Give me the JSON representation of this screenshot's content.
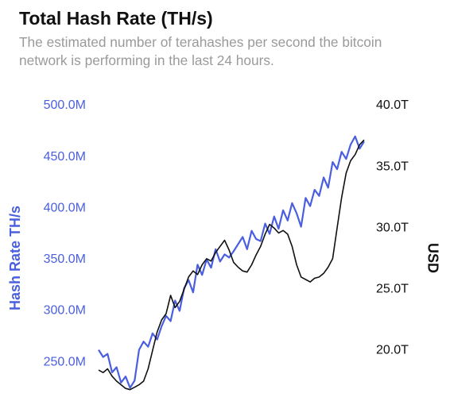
{
  "chart_data": {
    "type": "line",
    "title": "Total Hash Rate (TH/s)",
    "subtitle": "The estimated number of terahashes per second the bitcoin network is performing in the last 24 hours.",
    "ylabel": "Hash Rate TH/s",
    "y2label": "USD",
    "ylim": [
      216000000.0,
      500000000.0
    ],
    "yticks": [
      {
        "value": 250000000.0,
        "label": "250.0M"
      },
      {
        "value": 300000000.0,
        "label": "300.0M"
      },
      {
        "value": 350000000.0,
        "label": "350.0M"
      },
      {
        "value": 400000000.0,
        "label": "400.0M"
      },
      {
        "value": 450000000.0,
        "label": "450.0M"
      },
      {
        "value": 500000000.0,
        "label": "500.0M"
      }
    ],
    "y2lim": [
      16200000000000.0,
      40000000000000.0
    ],
    "y2ticks": [
      {
        "value": 20000000000000.0,
        "label": "20.0T"
      },
      {
        "value": 25000000000000.0,
        "label": "25.0T"
      },
      {
        "value": 30000000000000.0,
        "label": "30.0T"
      },
      {
        "value": 35000000000000.0,
        "label": "35.0T"
      },
      {
        "value": 40000000000000.0,
        "label": "40.0T"
      }
    ],
    "ycolor": "#4a5fe0",
    "y2color": "#111111",
    "series": [
      {
        "color": "#4a5fe0",
        "values": [
          262000000.0,
          255000000.0,
          258000000.0,
          240000000.0,
          245000000.0,
          230000000.0,
          236000000.0,
          225000000.0,
          232000000.0,
          262000000.0,
          270000000.0,
          265000000.0,
          278000000.0,
          272000000.0,
          285000000.0,
          295000000.0,
          290000000.0,
          310000000.0,
          300000000.0,
          322000000.0,
          330000000.0,
          318000000.0,
          345000000.0,
          335000000.0,
          350000000.0,
          342000000.0,
          360000000.0,
          348000000.0,
          355000000.0,
          352000000.0,
          358000000.0,
          365000000.0,
          372000000.0,
          360000000.0,
          378000000.0,
          370000000.0,
          368000000.0,
          385000000.0,
          375000000.0,
          392000000.0,
          380000000.0,
          398000000.0,
          388000000.0,
          405000000.0,
          395000000.0,
          382000000.0,
          410000000.0,
          402000000.0,
          418000000.0,
          412000000.0,
          430000000.0,
          420000000.0,
          445000000.0,
          438000000.0,
          455000000.0,
          448000000.0,
          462000000.0,
          470000000.0,
          458000000.0,
          465000000.0
        ]
      },
      {
        "color": "#111111",
        "axis": "y2",
        "values": [
          18400000000000.0,
          18200000000000.0,
          18500000000000.0,
          17900000000000.0,
          17500000000000.0,
          17200000000000.0,
          16900000000000.0,
          16800000000000.0,
          17000000000000.0,
          17200000000000.0,
          17500000000000.0,
          18500000000000.0,
          20000000000000.0,
          21500000000000.0,
          22500000000000.0,
          23000000000000.0,
          24500000000000.0,
          23500000000000.0,
          24000000000000.0,
          25000000000000.0,
          26000000000000.0,
          26500000000000.0,
          26200000000000.0,
          27000000000000.0,
          27500000000000.0,
          27300000000000.0,
          28000000000000.0,
          28500000000000.0,
          29000000000000.0,
          28200000000000.0,
          27200000000000.0,
          26800000000000.0,
          26500000000000.0,
          26400000000000.0,
          27000000000000.0,
          27800000000000.0,
          28500000000000.0,
          29500000000000.0,
          30300000000000.0,
          30000000000000.0,
          29600000000000.0,
          29800000000000.0,
          29500000000000.0,
          28500000000000.0,
          27000000000000.0,
          26000000000000.0,
          25800000000000.0,
          25600000000000.0,
          25900000000000.0,
          26000000000000.0,
          26300000000000.0,
          26800000000000.0,
          27500000000000.0,
          30000000000000.0,
          32500000000000.0,
          34500000000000.0,
          35500000000000.0,
          36000000000000.0,
          36800000000000.0,
          37200000000000.0
        ]
      }
    ]
  }
}
